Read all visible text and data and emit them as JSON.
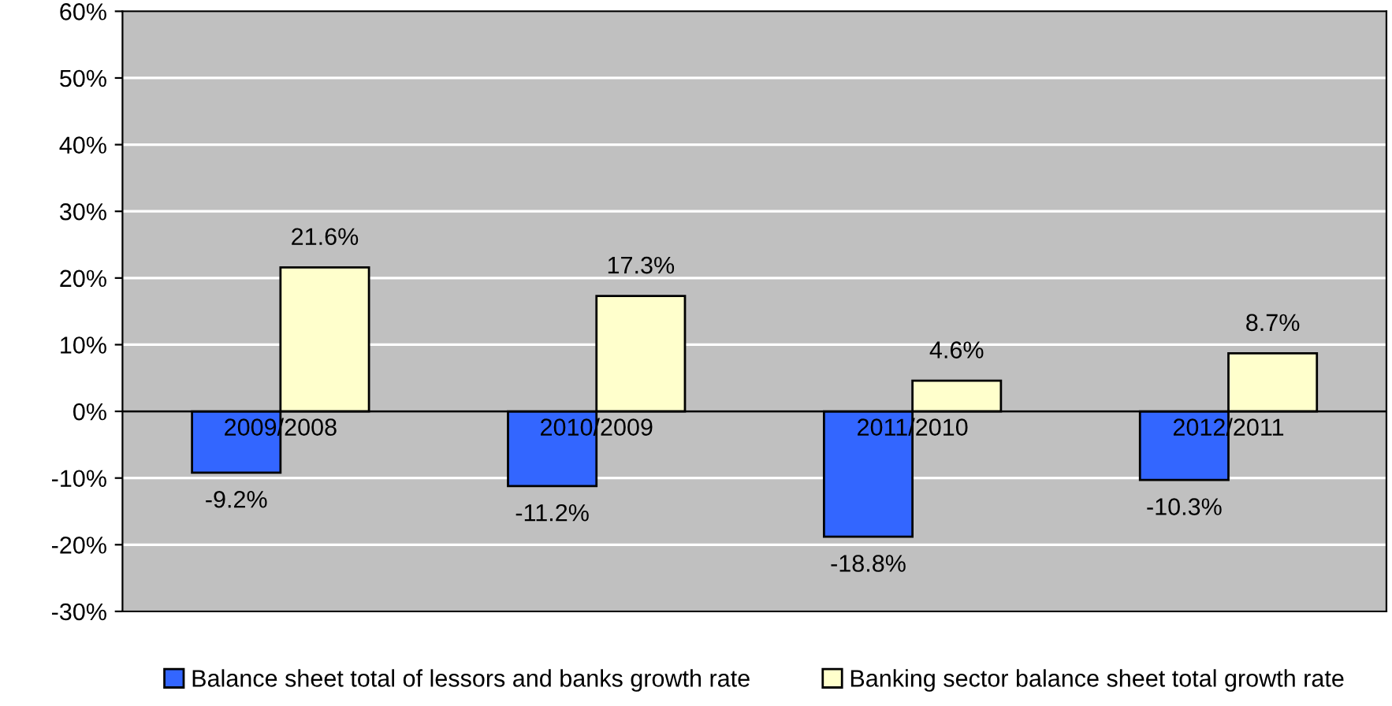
{
  "chart_data": {
    "type": "bar",
    "categories": [
      "2009/2008",
      "2010/2009",
      "2011/2010",
      "2012/2011"
    ],
    "series": [
      {
        "name": "Balance sheet total of lessors and banks growth rate",
        "color": "#3366ff",
        "values": [
          -9.2,
          -11.2,
          -18.8,
          -10.3
        ],
        "value_labels": [
          "-9.2%",
          "-11.2%",
          "-18.8%",
          "-10.3%"
        ]
      },
      {
        "name": "Banking sector balance sheet total growth rate",
        "color": "#ffffcc",
        "values": [
          21.6,
          17.3,
          4.6,
          8.7
        ],
        "value_labels": [
          "21.6%",
          "17.3%",
          "4.6%",
          "8.7%"
        ]
      }
    ],
    "ylim": [
      -30,
      60
    ],
    "yticks": [
      {
        "value": -30,
        "label": "-30%"
      },
      {
        "value": -20,
        "label": "-20%"
      },
      {
        "value": -10,
        "label": "-10%"
      },
      {
        "value": 0,
        "label": "0%"
      },
      {
        "value": 10,
        "label": "10%"
      },
      {
        "value": 20,
        "label": "20%"
      },
      {
        "value": 30,
        "label": "30%"
      },
      {
        "value": 40,
        "label": "40%"
      },
      {
        "value": 50,
        "label": "50%"
      },
      {
        "value": 60,
        "label": "60%"
      }
    ],
    "grid": "y",
    "legend": "bottom"
  }
}
